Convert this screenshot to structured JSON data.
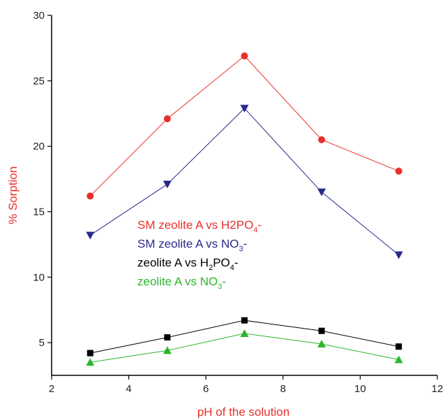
{
  "chart_data": {
    "type": "line",
    "xlabel": "pH of the solution",
    "ylabel": "% Sorption",
    "xlim": [
      2,
      12
    ],
    "ylim": [
      2.5,
      30
    ],
    "xticks": [
      2,
      4,
      6,
      8,
      10,
      12
    ],
    "yticks": [
      5,
      10,
      15,
      20,
      25,
      30
    ],
    "x": [
      3,
      5,
      7,
      9,
      11
    ],
    "grid": false,
    "legend_position": "center-left",
    "series": [
      {
        "name": "SM zeolite A vs H2PO4-",
        "legend_main": "SM zeolite A vs H2PO",
        "legend_sub": "4",
        "legend_tail": "-",
        "color": "#e8302a",
        "marker": "circle",
        "values": [
          16.2,
          22.1,
          26.9,
          20.5,
          18.1
        ]
      },
      {
        "name": "SM zeolite A vs NO3-",
        "legend_main": "SM zeolite A vs NO",
        "legend_sub": "3",
        "legend_tail": "-",
        "color": "#2a2a8a",
        "marker": "triangle-down",
        "values": [
          13.2,
          17.1,
          22.9,
          16.5,
          11.7
        ]
      },
      {
        "name": "zeolite A vs H2PO4-",
        "legend_main": "zeolite A vs H",
        "legend_sub": "2",
        "legend_tail": "PO",
        "legend_sub2": "4",
        "legend_tail2": "-",
        "color": "#000000",
        "marker": "square",
        "values": [
          4.2,
          5.4,
          6.7,
          5.9,
          4.7
        ]
      },
      {
        "name": "zeolite A vs NO3-",
        "legend_main": "zeolite A vs NO",
        "legend_sub": "3",
        "legend_tail": "-",
        "color": "#2db52d",
        "marker": "triangle-up",
        "values": [
          3.5,
          4.4,
          5.7,
          4.9,
          3.7
        ]
      }
    ]
  }
}
